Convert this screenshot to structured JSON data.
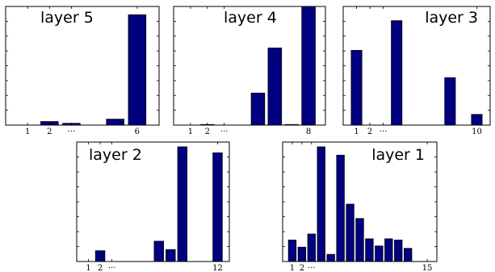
{
  "chart_data": [
    {
      "type": "bar",
      "title": "layer 5",
      "xticks": [
        {
          "pos": 1,
          "label": "1"
        },
        {
          "pos": 2,
          "label": "2"
        },
        {
          "pos": 3,
          "label": "···"
        },
        {
          "pos": 6,
          "label": "6"
        }
      ],
      "xlim": [
        0,
        7
      ],
      "ylim": [
        0,
        1
      ],
      "x": [
        1,
        2,
        3,
        4,
        5,
        6
      ],
      "values": [
        0.0,
        0.03,
        0.015,
        0.0,
        0.05,
        0.93
      ]
    },
    {
      "type": "bar",
      "title": "layer 4",
      "xticks": [
        {
          "pos": 1,
          "label": "1"
        },
        {
          "pos": 2,
          "label": "2"
        },
        {
          "pos": 3,
          "label": "···"
        },
        {
          "pos": 8,
          "label": "8"
        }
      ],
      "xlim": [
        0,
        9
      ],
      "ylim": [
        0,
        1
      ],
      "x": [
        1,
        2,
        3,
        4,
        5,
        6,
        7,
        8
      ],
      "values": [
        0.0,
        0.005,
        0.0,
        0.0,
        0.27,
        0.65,
        0.005,
        1.0
      ]
    },
    {
      "type": "bar",
      "title": "layer 3",
      "xticks": [
        {
          "pos": 1,
          "label": "1"
        },
        {
          "pos": 2,
          "label": "2"
        },
        {
          "pos": 3,
          "label": "···"
        },
        {
          "pos": 10,
          "label": "10"
        }
      ],
      "xlim": [
        0,
        11
      ],
      "ylim": [
        0,
        1
      ],
      "x": [
        1,
        2,
        3,
        4,
        5,
        6,
        7,
        8,
        9,
        10
      ],
      "values": [
        0.63,
        0.0,
        0.0,
        0.88,
        0.0,
        0.0,
        0.0,
        0.4,
        0.0,
        0.09
      ]
    },
    {
      "type": "bar",
      "title": "layer 2",
      "xticks": [
        {
          "pos": 1,
          "label": "1"
        },
        {
          "pos": 2,
          "label": "2"
        },
        {
          "pos": 3,
          "label": "···"
        },
        {
          "pos": 12,
          "label": "12"
        }
      ],
      "xlim": [
        0,
        13
      ],
      "ylim": [
        0,
        1
      ],
      "x": [
        1,
        2,
        3,
        4,
        5,
        6,
        7,
        8,
        9,
        10,
        11,
        12
      ],
      "values": [
        0.0,
        0.09,
        0.0,
        0.0,
        0.0,
        0.0,
        0.17,
        0.1,
        0.96,
        0.0,
        0.0,
        0.91
      ]
    },
    {
      "type": "bar",
      "title": "layer 1",
      "xticks": [
        {
          "pos": 1,
          "label": "1"
        },
        {
          "pos": 2,
          "label": "2"
        },
        {
          "pos": 3,
          "label": "···"
        },
        {
          "pos": 15,
          "label": "15"
        }
      ],
      "xlim": [
        0,
        16
      ],
      "ylim": [
        0,
        1
      ],
      "x": [
        1,
        2,
        3,
        4,
        5,
        6,
        7,
        8,
        9,
        10,
        11,
        12,
        13,
        14,
        15
      ],
      "values": [
        0.18,
        0.12,
        0.23,
        0.96,
        0.06,
        0.89,
        0.48,
        0.36,
        0.19,
        0.13,
        0.19,
        0.18,
        0.11,
        0.0,
        0.0
      ]
    }
  ]
}
